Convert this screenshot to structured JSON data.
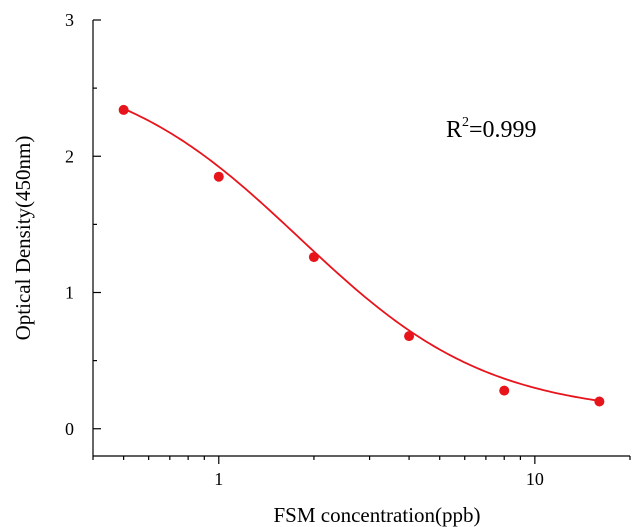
{
  "chart_data": {
    "type": "scatter",
    "xlabel": "FSM concentration(ppb)",
    "ylabel": "Optical Density(450nm)",
    "x_scale": "log",
    "xlim": [
      0.4,
      20
    ],
    "ylim": [
      -0.2,
      3
    ],
    "x_ticks": [
      1,
      10
    ],
    "x_tick_labels": [
      "1",
      "10"
    ],
    "y_ticks": [
      0,
      1,
      2,
      3
    ],
    "y_tick_labels": [
      "0",
      "1",
      "2",
      "3"
    ],
    "grid": false,
    "legend": "none",
    "annotation": {
      "prefix": "R",
      "superscript": "2",
      "suffix": "=0.999"
    },
    "series": [
      {
        "x": [
          0.5,
          1,
          2,
          4,
          8,
          16
        ],
        "y": [
          2.34,
          1.85,
          1.26,
          0.68,
          0.28,
          0.2
        ],
        "color": "#e8141c",
        "marker": "circle",
        "fit": "four-parameter logistic"
      }
    ]
  }
}
